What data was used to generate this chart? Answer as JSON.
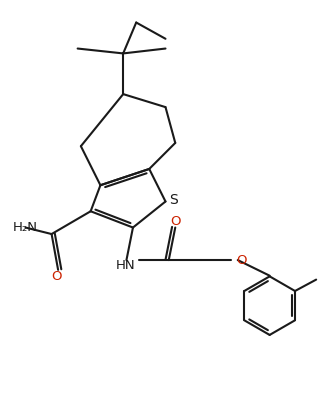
{
  "bg_color": "#ffffff",
  "line_color": "#1a1a1a",
  "line_width": 1.5,
  "figsize": [
    3.31,
    4.03
  ],
  "dpi": 100,
  "xlim": [
    0,
    10
  ],
  "ylim": [
    0,
    12
  ]
}
